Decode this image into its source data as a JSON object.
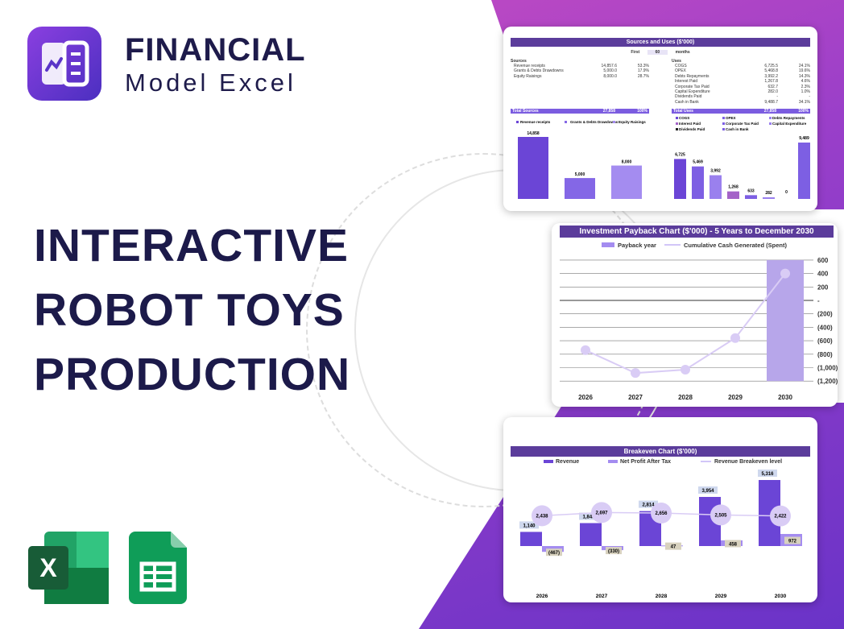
{
  "brand": {
    "name_line1": "FINANCIAL",
    "name_line2": "Model Excel"
  },
  "headline": [
    "INTERACTIVE",
    "ROBOT TOYS",
    "PRODUCTION"
  ],
  "colors": {
    "accent": "#5b3c9b",
    "bar1": "#6b45d6",
    "bar2": "#8a6ae6",
    "bar3": "#a78bf0",
    "navy": "#1e1b4b"
  },
  "icons": {
    "logo": "chart-document-icon",
    "excel": "excel-icon",
    "sheets": "google-sheets-icon"
  },
  "sources_uses": {
    "title": "Sources and Uses ($'000)",
    "period": {
      "label": "First",
      "value": "60",
      "unit": "months"
    },
    "sources_header": "Sources",
    "sources": [
      [
        "Revenue receipts",
        "14,857.6",
        "53.3%"
      ],
      [
        "Grants & Debts Drawdowns",
        "5,000.0",
        "17.9%"
      ],
      [
        "Equity Raisings",
        "8,000.0",
        "28.7%"
      ]
    ],
    "sources_total": [
      "Total Sources",
      "27,858",
      "100%"
    ],
    "uses_header": "Uses",
    "uses": [
      [
        "COGS",
        "6,725.5",
        "24.1%"
      ],
      [
        "OPEX",
        "5,468.8",
        "19.6%"
      ],
      [
        "Debts Repayments",
        "3,992.2",
        "14.3%"
      ],
      [
        "Interest Paid",
        "1,267.8",
        "4.6%"
      ],
      [
        "Corporate Tax Paid",
        "632.7",
        "2.3%"
      ],
      [
        "Capital Expenditure",
        "282.0",
        "1.0%"
      ],
      [
        "Dividends Paid",
        "-",
        "-"
      ],
      [
        "Cash in Bank",
        "9,488.7",
        "34.1%"
      ]
    ],
    "uses_total": [
      "Total Uses",
      "27,858",
      "100%"
    ]
  },
  "chart_data": [
    {
      "type": "bar",
      "categories": [
        "Revenue receipts",
        "Grants & Debts Drawdowns",
        "Equity Raisings"
      ],
      "values": [
        14858,
        5000,
        8000
      ],
      "labels": [
        "14,858",
        "5,000",
        "8,000"
      ],
      "legend": "top"
    },
    {
      "type": "bar",
      "categories": [
        "COGS",
        "OPEX",
        "Debts Repayments",
        "Interest Paid",
        "Corporate Tax Paid",
        "Capital Expenditure",
        "Dividends Paid",
        "Cash in Bank"
      ],
      "values": [
        6725,
        5469,
        3992,
        1268,
        633,
        282,
        0,
        9489
      ],
      "labels": [
        "6,725",
        "5,469",
        "3,992",
        "1,268",
        "633",
        "282",
        "0",
        "9,489"
      ],
      "legend": "top"
    },
    {
      "type": "line",
      "title": "Investment Payback Chart ($'000) - 5 Years to December 2030",
      "categories": [
        "2026",
        "2027",
        "2028",
        "2029",
        "2030"
      ],
      "series": [
        {
          "name": "Payback year",
          "type": "bar",
          "values": [
            null,
            null,
            null,
            null,
            1
          ]
        },
        {
          "name": "Cumulative Cash Generated (Spent)",
          "values": [
            -740,
            -1080,
            -1030,
            -560,
            400
          ]
        }
      ],
      "yticks": [
        "600",
        "400",
        "200",
        "-",
        "(200)",
        "(400)",
        "(600)",
        "(800)",
        "(1,000)",
        "(1,200)"
      ],
      "ylim": [
        -1200,
        600
      ],
      "grid": true,
      "legend": "top"
    },
    {
      "type": "bar",
      "title": "Breakeven Chart ($'000)",
      "categories": [
        "2026",
        "2027",
        "2028",
        "2029",
        "2030"
      ],
      "series": [
        {
          "name": "Revenue",
          "values": [
            1140,
            1848,
            2814,
            3954,
            5316
          ],
          "labels": [
            "1,140",
            "1,848",
            "2,814",
            "3,954",
            "5,316"
          ]
        },
        {
          "name": "Net Profit After Tax",
          "values": [
            -467,
            -330,
            47,
            458,
            972
          ],
          "labels": [
            "(467)",
            "(330)",
            "47",
            "458",
            "972"
          ]
        },
        {
          "name": "Revenue Breakeven level",
          "type": "line",
          "values": [
            2438,
            2697,
            2656,
            2505,
            2422
          ],
          "labels": [
            "2,438",
            "2,697",
            "2,656",
            "2,505",
            "2,422"
          ]
        }
      ],
      "legend": "top"
    }
  ]
}
